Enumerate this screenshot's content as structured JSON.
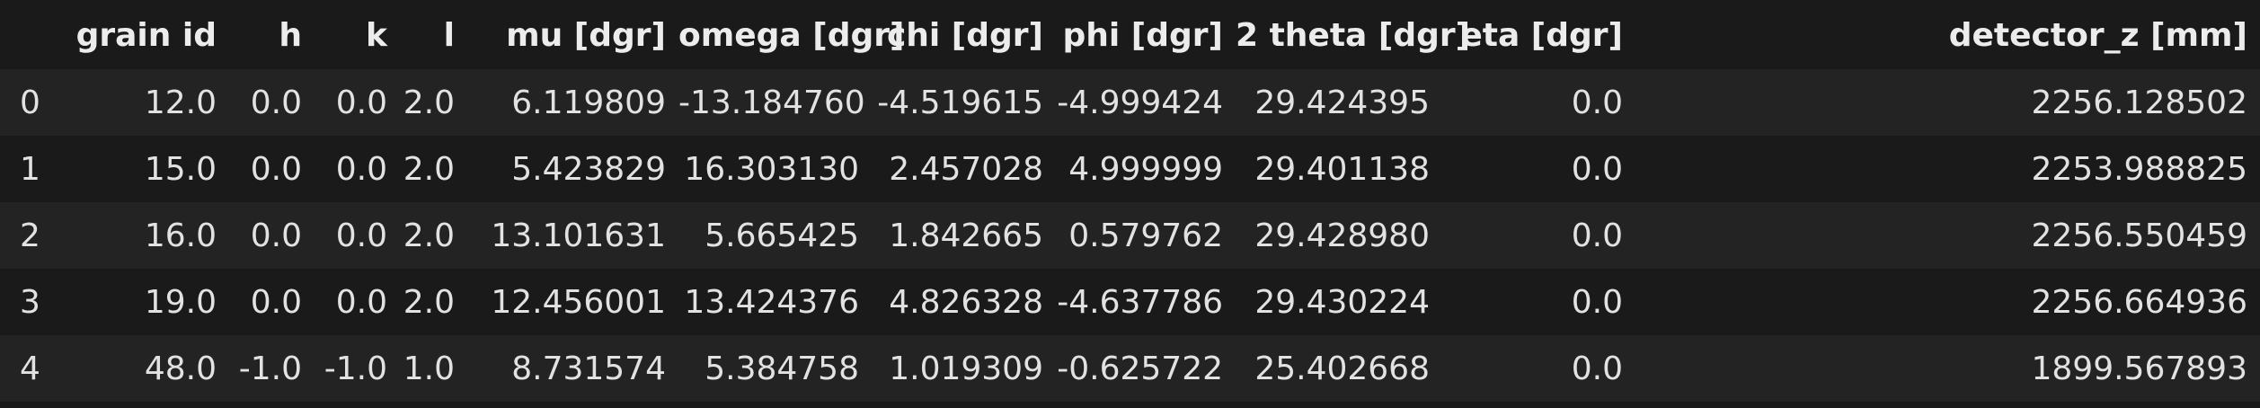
{
  "table": {
    "columns": [
      "",
      "grain id",
      "h",
      "k",
      "l",
      "mu [dgr]",
      "omega [dgr]",
      "chi [dgr]",
      "phi [dgr]",
      "2 theta [dgr]",
      "eta [dgr]",
      "detector_z [mm]"
    ],
    "rows": [
      [
        "0",
        "12.0",
        "0.0",
        "0.0",
        "2.0",
        "6.119809",
        "-13.184760",
        "-4.519615",
        "-4.999424",
        "29.424395",
        "0.0",
        "2256.128502"
      ],
      [
        "1",
        "15.0",
        "0.0",
        "0.0",
        "2.0",
        "5.423829",
        "16.303130",
        "2.457028",
        "4.999999",
        "29.401138",
        "0.0",
        "2253.988825"
      ],
      [
        "2",
        "16.0",
        "0.0",
        "0.0",
        "2.0",
        "13.101631",
        "5.665425",
        "1.842665",
        "0.579762",
        "29.428980",
        "0.0",
        "2256.550459"
      ],
      [
        "3",
        "19.0",
        "0.0",
        "0.0",
        "2.0",
        "12.456001",
        "13.424376",
        "4.826328",
        "-4.637786",
        "29.430224",
        "0.0",
        "2256.664936"
      ],
      [
        "4",
        "48.0",
        "-1.0",
        "-1.0",
        "1.0",
        "8.731574",
        "5.384758",
        "1.019309",
        "-0.625722",
        "25.402668",
        "0.0",
        "1899.567893"
      ]
    ]
  }
}
